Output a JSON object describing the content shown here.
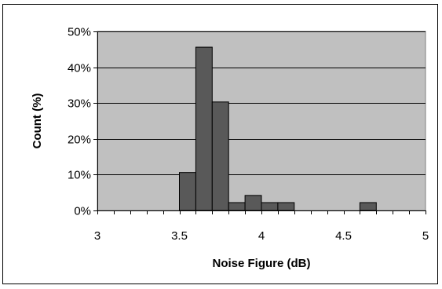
{
  "chart_data": {
    "type": "bar",
    "title": "",
    "xlabel": "Noise Figure (dB)",
    "ylabel": "Count (%)",
    "bin_width": 0.1,
    "x": [
      3.55,
      3.65,
      3.75,
      3.85,
      3.95,
      4.05,
      4.15,
      4.65
    ],
    "values": [
      10.6,
      45.6,
      30.3,
      2.2,
      4.2,
      2.2,
      2.2,
      2.2
    ],
    "xlim": [
      3,
      5
    ],
    "ylim": [
      0,
      50
    ],
    "x_ticks": [
      "3",
      "3.5",
      "4",
      "4.5",
      "5"
    ],
    "y_ticks": [
      "0%",
      "10%",
      "20%",
      "30%",
      "40%",
      "50%"
    ],
    "grid": true,
    "legend": "none",
    "colors": {
      "plot_area": "#c0c0c0",
      "bar": "#595959",
      "bar_edge": "#000000",
      "grid": "#000000"
    }
  }
}
